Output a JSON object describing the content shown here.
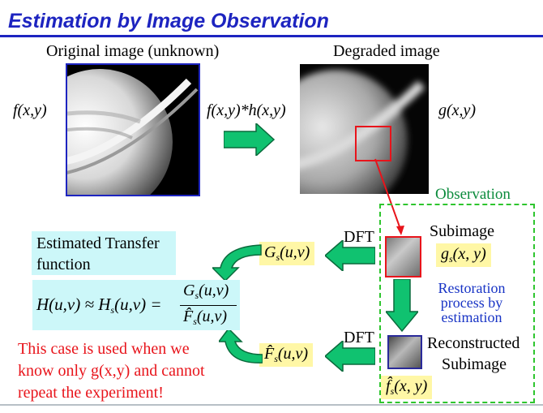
{
  "slide": {
    "title": "Estimation by Image Observation",
    "original_caption": "Original image (unknown)",
    "degraded_caption": "Degraded image",
    "f_label": "f(x,y)",
    "conv_label": "f(x,y)*h(x,y)",
    "g_label": "g(x,y)",
    "observation_label": "Observation",
    "dft_top": "DFT",
    "dft_bottom": "DFT",
    "subimage_label": "Subimage",
    "restoration_text": [
      "Restoration",
      "process by",
      "estimation"
    ],
    "reconstructed_label": [
      "Reconstructed",
      "Subimage"
    ],
    "estimated_tf_label": [
      "Estimated Transfer",
      "function"
    ],
    "note_lines": [
      "This case is used when we",
      "know only g(x,y) and cannot",
      "repeat the experiment!"
    ]
  },
  "colors": {
    "title": "#1d24c0",
    "arrow_fill": "#10c270",
    "observation_border": "#2ec52e",
    "red_highlight": "#e8141b",
    "yellow_box": "#fff7a6",
    "cyan_box": "#ccf7f9"
  }
}
